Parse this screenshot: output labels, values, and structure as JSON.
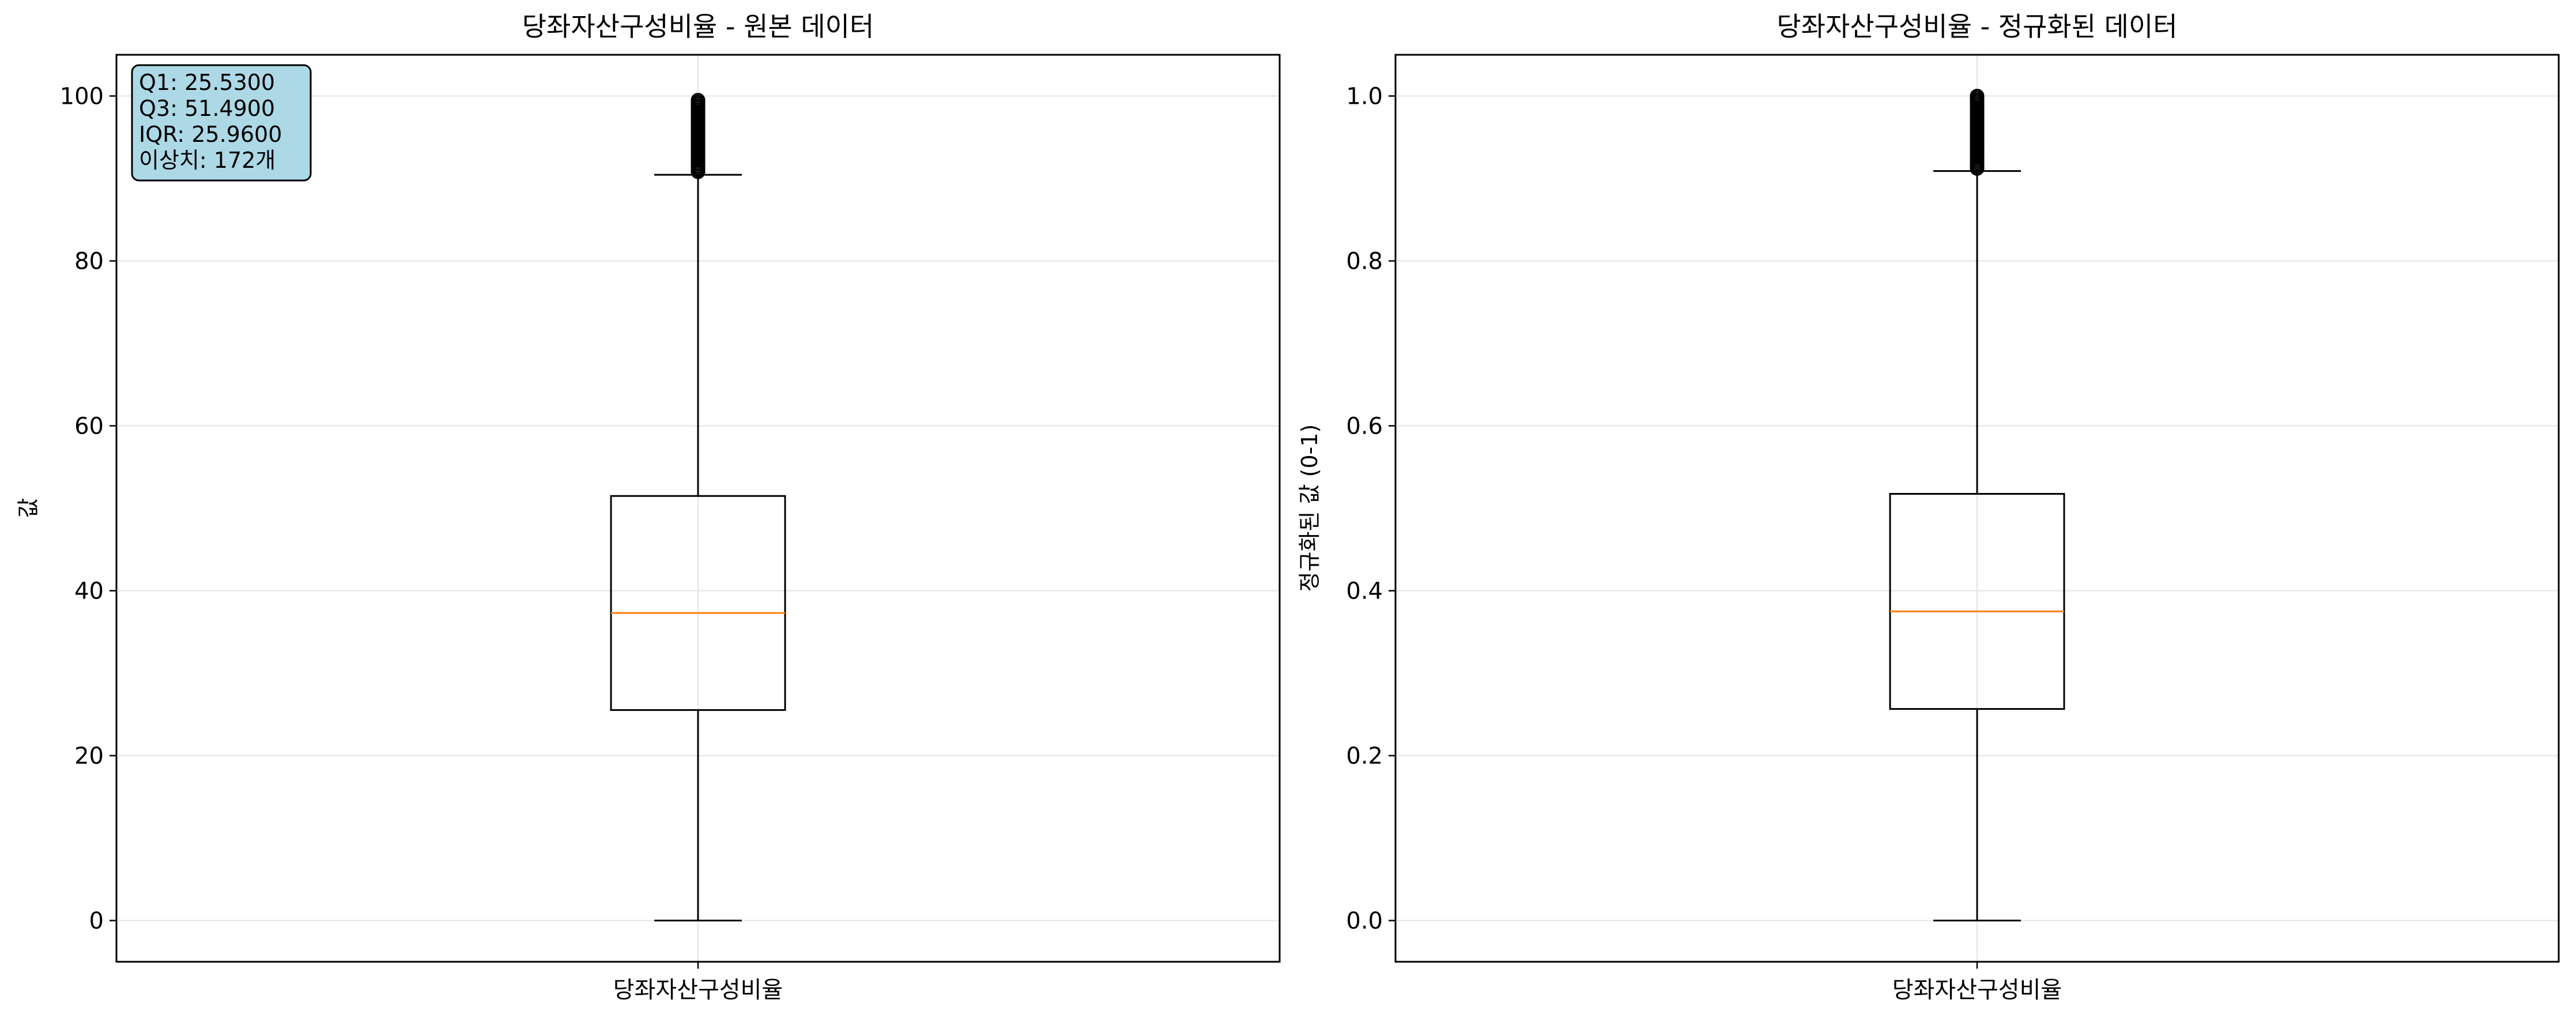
{
  "chart_data": [
    {
      "type": "box",
      "title": "당좌자산구성비율 - 원본 데이터",
      "xlabel": "",
      "ylabel": "값",
      "categories": [
        "당좌자산구성비율"
      ],
      "ylim": [
        -5,
        105
      ],
      "yticks": [
        0,
        20,
        40,
        60,
        80,
        100
      ],
      "ytick_labels": [
        "0",
        "20",
        "40",
        "60",
        "80",
        "100"
      ],
      "grid": true,
      "box": {
        "whisker_low": 0.0,
        "q1": 25.53,
        "median": 37.3,
        "q3": 51.49,
        "whisker_high": 90.45,
        "outlier_range": [
          90.8,
          99.5
        ]
      },
      "stats_box": {
        "position": "top-left",
        "lines": [
          "Q1: 25.5300",
          "Q3: 51.4900",
          "IQR: 25.9600",
          "이상치: 172개"
        ]
      }
    },
    {
      "type": "box",
      "title": "당좌자산구성비율 - 정규화된 데이터",
      "xlabel": "",
      "ylabel": "정규화된 값 (0-1)",
      "categories": [
        "당좌자산구성비율"
      ],
      "ylim": [
        -0.05,
        1.05
      ],
      "yticks": [
        0.0,
        0.2,
        0.4,
        0.6,
        0.8,
        1.0
      ],
      "ytick_labels": [
        "0.0",
        "0.2",
        "0.4",
        "0.6",
        "0.8",
        "1.0"
      ],
      "grid": true,
      "box": {
        "whisker_low": 0.0,
        "q1": 0.2566,
        "median": 0.3749,
        "q3": 0.5175,
        "whisker_high": 0.909,
        "outlier_range": [
          0.912,
          1.0
        ]
      }
    }
  ],
  "colors": {
    "box_edge": "#000000",
    "median": "#ff7f0e",
    "grid": "#e3e3e3",
    "stats_box_fill": "#add8e6",
    "stats_box_edge": "#000000"
  }
}
